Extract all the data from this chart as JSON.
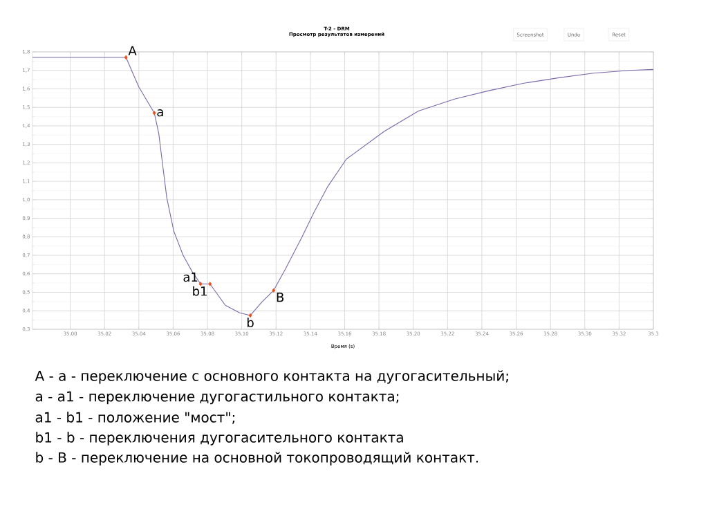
{
  "chart_data": {
    "type": "line",
    "title": "T-2 - DRM",
    "subtitle": "Просмотр результатов измерений",
    "xlabel": "Время (s)",
    "xlim": [
      34.978,
      35.34
    ],
    "ylim": [
      0.3,
      1.8
    ],
    "xticks": [
      {
        "value": 35.0,
        "label": "35.00"
      },
      {
        "value": 35.02,
        "label": "35.02"
      },
      {
        "value": 35.04,
        "label": "35.04"
      },
      {
        "value": 35.06,
        "label": "35.06"
      },
      {
        "value": 35.08,
        "label": "35.08"
      },
      {
        "value": 35.1,
        "label": "35.10"
      },
      {
        "value": 35.12,
        "label": "35.12"
      },
      {
        "value": 35.14,
        "label": "35.14"
      },
      {
        "value": 35.16,
        "label": "35.16"
      },
      {
        "value": 35.18,
        "label": "35.18"
      },
      {
        "value": 35.2,
        "label": "35.20"
      },
      {
        "value": 35.22,
        "label": "35.22"
      },
      {
        "value": 35.24,
        "label": "35.24"
      },
      {
        "value": 35.26,
        "label": "35.26"
      },
      {
        "value": 35.28,
        "label": "35.28"
      },
      {
        "value": 35.3,
        "label": "35.30"
      },
      {
        "value": 35.32,
        "label": "35.32"
      },
      {
        "value": 35.34,
        "label": "35.3"
      }
    ],
    "yticks": [
      {
        "value": 0.3,
        "label": "0,3"
      },
      {
        "value": 0.4,
        "label": "0,4"
      },
      {
        "value": 0.5,
        "label": "0,5"
      },
      {
        "value": 0.6,
        "label": "0,6"
      },
      {
        "value": 0.7,
        "label": "0,7"
      },
      {
        "value": 0.8,
        "label": "0,8"
      },
      {
        "value": 0.9,
        "label": "0,9"
      },
      {
        "value": 1.0,
        "label": "1,0"
      },
      {
        "value": 1.1,
        "label": "1,1"
      },
      {
        "value": 1.2,
        "label": "1,2"
      },
      {
        "value": 1.3,
        "label": "1,3"
      },
      {
        "value": 1.4,
        "label": "1,4"
      },
      {
        "value": 1.5,
        "label": "1,5"
      },
      {
        "value": 1.6,
        "label": "1,6"
      },
      {
        "value": 1.7,
        "label": "1,7"
      },
      {
        "value": 1.8,
        "label": "1,8"
      }
    ],
    "grid": true,
    "series": [
      {
        "color": "#7b68a8",
        "marker": "none",
        "x": [
          34.978,
          35.0325,
          35.04,
          35.049,
          35.0516,
          35.0536,
          35.0563,
          35.0604,
          35.0658,
          35.0712,
          35.076,
          35.0815,
          35.0904,
          35.0986,
          35.105,
          35.112,
          35.1186,
          35.1257,
          35.1352,
          35.142,
          35.15,
          35.161,
          35.183,
          35.203,
          35.224,
          35.244,
          35.264,
          35.285,
          35.305,
          35.326,
          35.34
        ],
        "values": [
          1.77,
          1.77,
          1.61,
          1.47,
          1.36,
          1.21,
          1.01,
          0.83,
          0.7,
          0.61,
          0.545,
          0.545,
          0.43,
          0.39,
          0.375,
          0.45,
          0.51,
          0.63,
          0.8,
          0.93,
          1.07,
          1.22,
          1.37,
          1.48,
          1.545,
          1.59,
          1.63,
          1.66,
          1.685,
          1.7,
          1.705
        ]
      },
      {
        "type": "scatter",
        "color": "#e8501e",
        "marker": "diamond",
        "x": [
          35.0325,
          35.049,
          35.076,
          35.0815,
          35.105,
          35.1186
        ],
        "values": [
          1.77,
          1.47,
          0.545,
          0.545,
          0.375,
          0.51
        ]
      }
    ],
    "annotations": [
      "Screenshot",
      "Undo",
      "Reset",
      {
        "text": "A",
        "x": 35.0325,
        "y": 1.77
      },
      {
        "text": "a",
        "x": 35.049,
        "y": 1.47
      },
      {
        "text": "a1",
        "x": 35.076,
        "y": 0.545
      },
      {
        "text": "b1",
        "x": 35.0815,
        "y": 0.545
      },
      {
        "text": "b",
        "x": 35.105,
        "y": 0.375
      },
      {
        "text": "B",
        "x": 35.1186,
        "y": 0.51
      },
      "A - a - переключение с основного контакта на дугогасительный;",
      "a - a1 - переключение дугогастильного контакта;",
      "a1 - b1 - положение \"мост\";",
      "b1 - b - переключения дугогасительного контакта",
      "b - B - переключение на основной токопроводящий контакт."
    ]
  }
}
